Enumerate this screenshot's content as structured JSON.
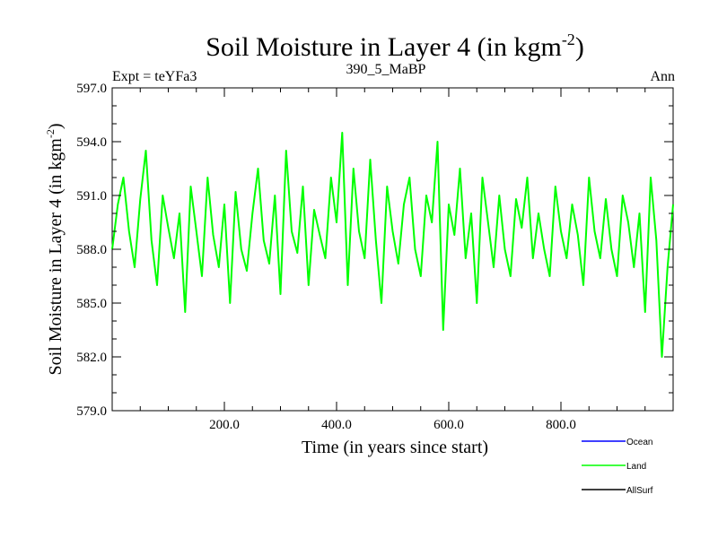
{
  "chart_data": {
    "type": "line",
    "title": "Soil Moisture in Layer 4 (in kgm",
    "title_sup": "-2",
    "title_end": ")",
    "subtitle_left": "Expt = teYFa3",
    "subtitle_center": "390_5_MaBP",
    "subtitle_right": "Ann",
    "xlabel": "Time (in years since start)",
    "ylabel": "Soil Moisture in Layer 4 (in kgm",
    "ylabel_sup": "-2",
    "ylabel_end": ")",
    "xlim": [
      0,
      1000
    ],
    "ylim": [
      579,
      597
    ],
    "xticks": [
      200,
      400,
      600,
      800
    ],
    "xtick_labels": [
      "200.0",
      "400.0",
      "600.0",
      "800.0"
    ],
    "yticks": [
      579,
      582,
      585,
      588,
      591,
      594,
      597
    ],
    "ytick_labels": [
      "579.0",
      "582.0",
      "585.0",
      "588.0",
      "591.0",
      "594.0",
      "597.0"
    ],
    "legend_position": "bottom-right",
    "series": [
      {
        "name": "Ocean",
        "color": "#0000ff",
        "x": [],
        "values": []
      },
      {
        "name": "Land",
        "color": "#00ff00",
        "x": [
          0,
          10,
          20,
          30,
          40,
          50,
          60,
          70,
          80,
          90,
          100,
          110,
          120,
          130,
          140,
          150,
          160,
          170,
          180,
          190,
          200,
          210,
          220,
          230,
          240,
          250,
          260,
          270,
          280,
          290,
          300,
          310,
          320,
          330,
          340,
          350,
          360,
          370,
          380,
          390,
          400,
          410,
          420,
          430,
          440,
          450,
          460,
          470,
          480,
          490,
          500,
          510,
          520,
          530,
          540,
          550,
          560,
          570,
          580,
          590,
          600,
          610,
          620,
          630,
          640,
          650,
          660,
          670,
          680,
          690,
          700,
          710,
          720,
          730,
          740,
          750,
          760,
          770,
          780,
          790,
          800,
          810,
          820,
          830,
          840,
          850,
          860,
          870,
          880,
          890,
          900,
          910,
          920,
          930,
          940,
          950,
          960,
          970,
          980,
          990,
          1000
        ],
        "values": [
          588.0,
          590.5,
          592.0,
          589.0,
          587.0,
          590.8,
          593.5,
          588.5,
          586.0,
          591.0,
          589.2,
          587.5,
          590.0,
          584.5,
          591.5,
          589.0,
          586.5,
          592.0,
          588.8,
          587.0,
          590.5,
          585.0,
          591.2,
          588.0,
          586.8,
          590.0,
          592.5,
          588.5,
          587.2,
          591.0,
          585.5,
          593.5,
          589.0,
          587.8,
          591.5,
          586.0,
          590.2,
          588.8,
          587.5,
          592.0,
          589.5,
          594.5,
          586.0,
          592.5,
          589.0,
          587.5,
          593.0,
          588.5,
          585.0,
          591.5,
          589.0,
          587.2,
          590.5,
          592.0,
          588.0,
          586.5,
          591.0,
          589.5,
          594.0,
          583.5,
          590.5,
          588.8,
          592.5,
          587.5,
          590.0,
          585.0,
          592.0,
          589.5,
          587.0,
          591.0,
          588.0,
          586.5,
          590.8,
          589.2,
          592.0,
          587.5,
          590.0,
          588.0,
          586.5,
          591.5,
          589.0,
          587.5,
          590.5,
          588.8,
          586.0,
          592.0,
          589.0,
          587.5,
          590.8,
          588.0,
          586.5,
          591.0,
          589.5,
          587.0,
          590.0,
          584.5,
          592.0,
          588.5,
          582.0,
          587.0,
          590.5
        ]
      },
      {
        "name": "AllSurf",
        "color": "#000000",
        "x": [],
        "values": []
      }
    ]
  }
}
